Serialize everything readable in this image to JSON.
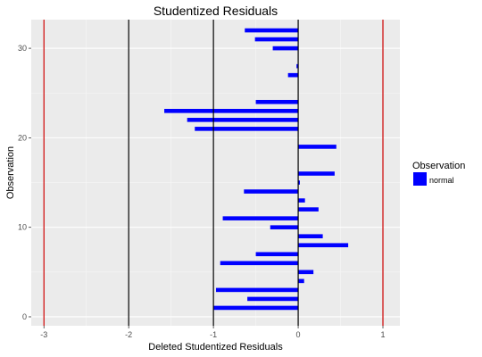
{
  "chart_data": {
    "type": "bar",
    "orientation": "horizontal",
    "title": "Studentized Residuals",
    "xlabel": "Deleted Studentized Residuals",
    "ylabel": "Observation",
    "xlim": [
      -3.15,
      1.2
    ],
    "ylim": [
      -1,
      33.2
    ],
    "x_ticks": [
      -3,
      -2,
      -1,
      0,
      1
    ],
    "y_ticks": [
      0,
      10,
      20,
      30
    ],
    "grid": true,
    "reference_lines": [
      {
        "x": -3,
        "color": "#cc0000"
      },
      {
        "x": -2,
        "color": "#000000"
      },
      {
        "x": -1,
        "color": "#000000"
      },
      {
        "x": 0,
        "color": "#000000"
      },
      {
        "x": 1,
        "color": "#cc0000"
      }
    ],
    "series": [
      {
        "name": "normal",
        "color": "#0000ff",
        "observations": [
          1,
          2,
          3,
          4,
          5,
          6,
          7,
          8,
          9,
          10,
          11,
          12,
          13,
          14,
          15,
          16,
          17,
          18,
          19,
          20,
          21,
          22,
          23,
          24,
          25,
          26,
          27,
          28,
          29,
          30,
          31,
          32
        ],
        "values": [
          -1.0,
          -0.6,
          -0.97,
          0.07,
          0.18,
          -0.92,
          -0.5,
          0.59,
          0.29,
          -0.33,
          -0.89,
          0.24,
          0.08,
          -0.64,
          0.02,
          0.43,
          0,
          0,
          0.45,
          0,
          -1.22,
          -1.31,
          -1.58,
          -0.5,
          0,
          0,
          -0.12,
          -0.02,
          0,
          -0.3,
          -0.51,
          -0.63
        ]
      }
    ],
    "legend": {
      "title": "Observation",
      "placement": "right",
      "entries": [
        {
          "label": "normal",
          "color": "#0000ff"
        }
      ]
    }
  }
}
